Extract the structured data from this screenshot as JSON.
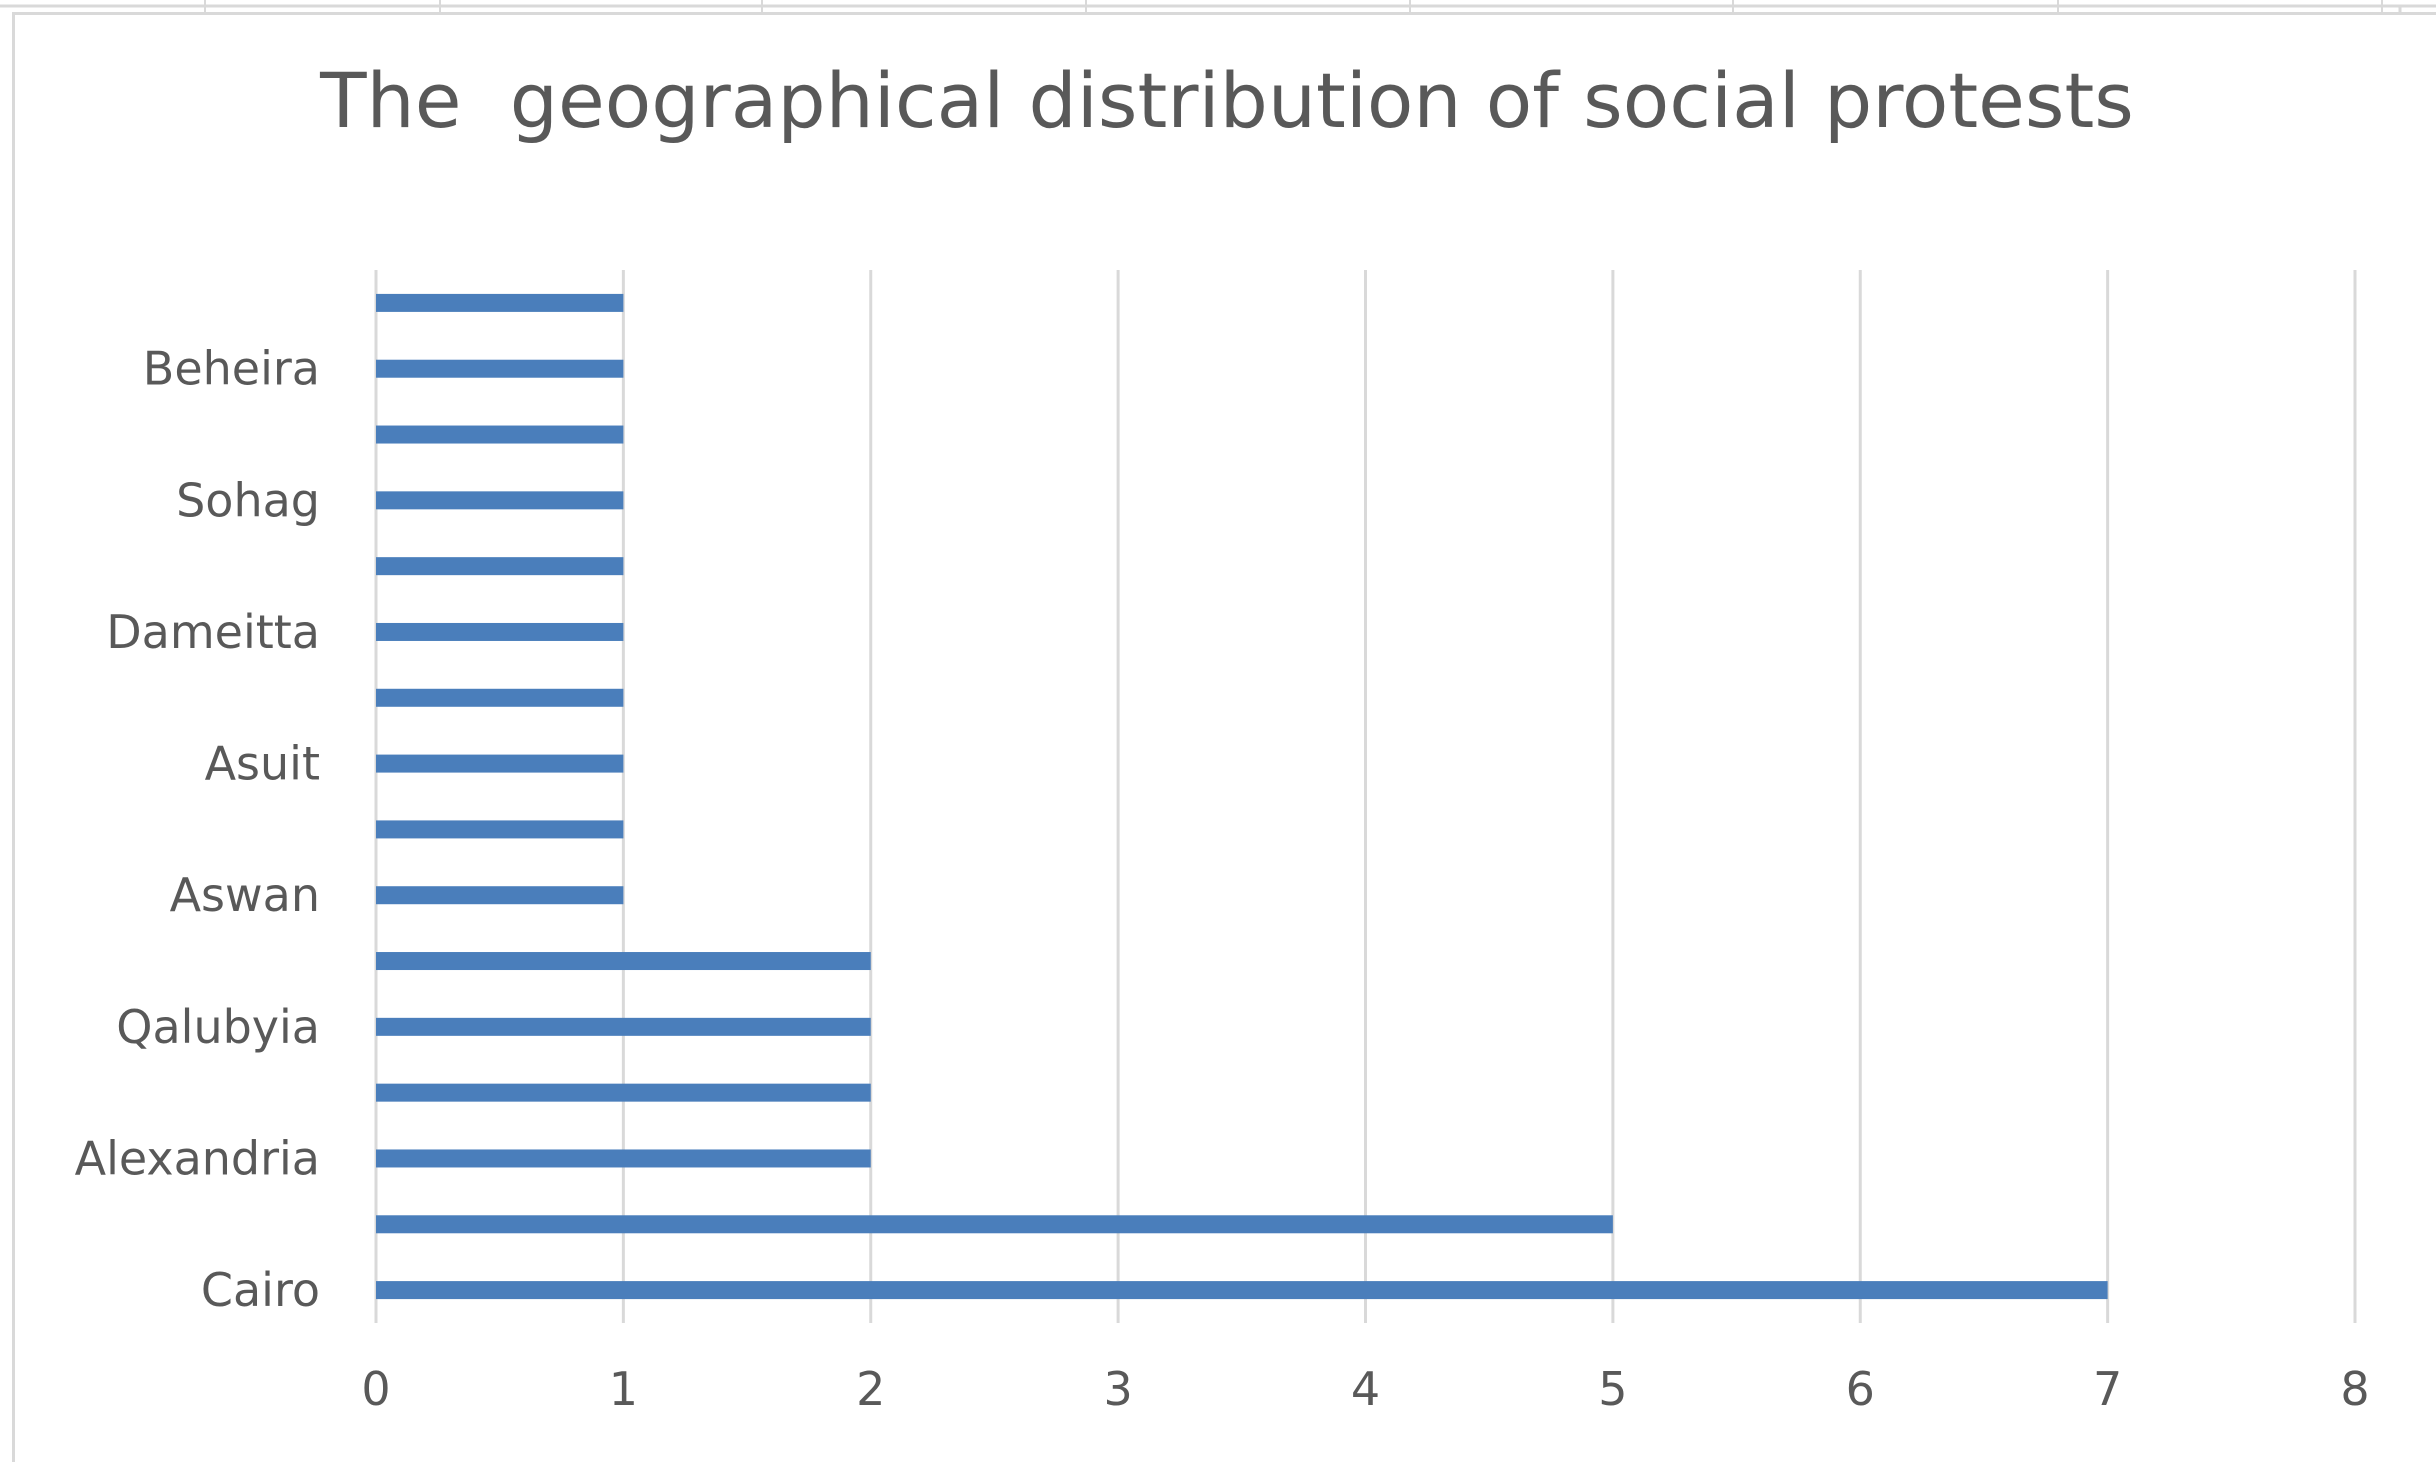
{
  "chart_data": {
    "type": "bar",
    "orientation": "horizontal",
    "title": "The  geographical distribution of social protests",
    "categories": [
      "Cairo",
      "",
      "Alexandria",
      "",
      "Qalubyia",
      "",
      "Aswan",
      "",
      "Asuit",
      "",
      "Dameitta",
      "",
      "Sohag",
      "",
      "Beheira",
      ""
    ],
    "series": [
      {
        "values": [
          7,
          5,
          2,
          2,
          2,
          2,
          1,
          1,
          1,
          1,
          1,
          1,
          1,
          1,
          1,
          1
        ]
      }
    ],
    "xlim": [
      0,
      8
    ],
    "xticks": [
      "0",
      "1",
      "2",
      "3",
      "4",
      "5",
      "6",
      "7",
      "8"
    ],
    "grid": "vertical",
    "legend": "none",
    "bar_color": "#4a7ebb",
    "grid_color": "#d9d9d9",
    "text_color": "#595959"
  }
}
